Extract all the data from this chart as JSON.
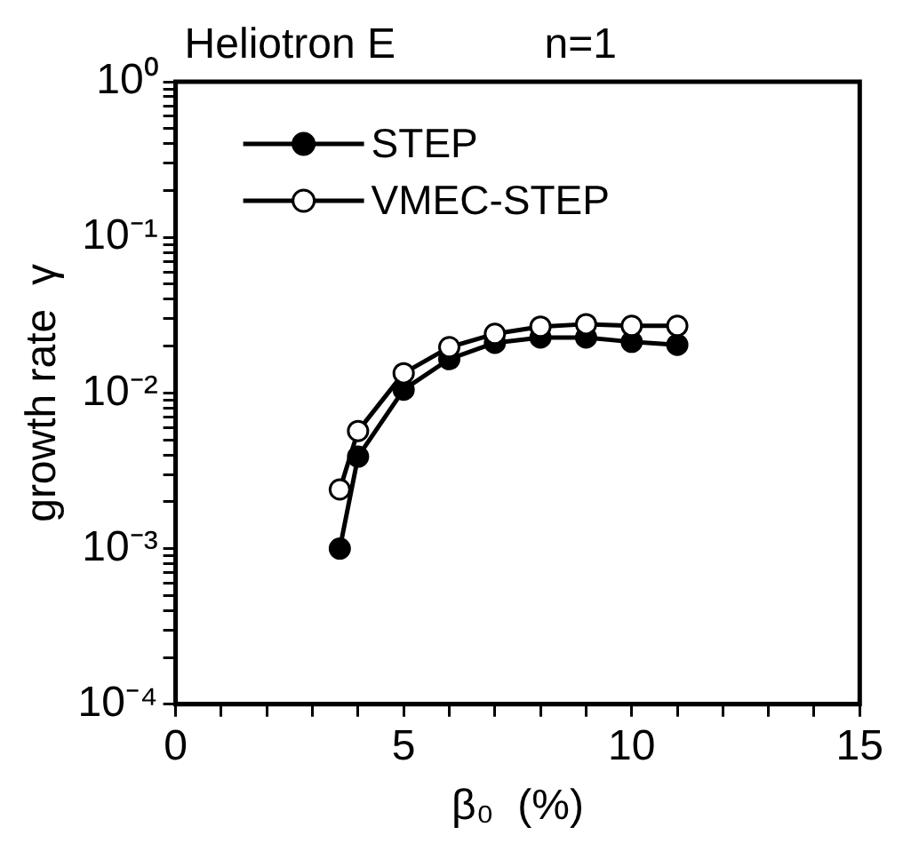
{
  "chart_data": {
    "type": "line",
    "title": "Heliotron E",
    "annotations": [
      "n=1"
    ],
    "xlabel": "β₀  (%)",
    "ylabel": "growth rate  γ",
    "log": "y",
    "marker": "circle",
    "line_style": "solid",
    "grid": false,
    "legend": "top left",
    "xlim": [
      0,
      15
    ],
    "ylim": [
      0.0001,
      1
    ],
    "xticks": [
      0,
      {
        "value": 1,
        "label": null
      },
      {
        "value": 2,
        "label": null
      },
      {
        "value": 3,
        "label": null
      },
      {
        "value": 4,
        "label": null
      },
      5,
      {
        "value": 6,
        "label": null
      },
      {
        "value": 7,
        "label": null
      },
      {
        "value": 8,
        "label": null
      },
      {
        "value": 9,
        "label": null
      },
      10,
      {
        "value": 11,
        "label": null
      },
      {
        "value": 12,
        "label": null
      },
      {
        "value": 13,
        "label": null
      },
      {
        "value": 14,
        "label": null
      },
      15
    ],
    "yticks": [
      {
        "value": 0.0001,
        "label": "10⁻⁴"
      },
      {
        "value": 0.0002,
        "label": null
      },
      {
        "value": 0.0003,
        "label": null
      },
      {
        "value": 0.0004,
        "label": null
      },
      {
        "value": 0.0005,
        "label": null
      },
      {
        "value": 0.0006,
        "label": null
      },
      {
        "value": 0.0007,
        "label": null
      },
      {
        "value": 0.0008,
        "label": null
      },
      {
        "value": 0.0009,
        "label": null
      },
      {
        "value": 0.001,
        "label": "10⁻³"
      },
      {
        "value": 0.002,
        "label": null
      },
      {
        "value": 0.003,
        "label": null
      },
      {
        "value": 0.004,
        "label": null
      },
      {
        "value": 0.005,
        "label": null
      },
      {
        "value": 0.006,
        "label": null
      },
      {
        "value": 0.007,
        "label": null
      },
      {
        "value": 0.008,
        "label": null
      },
      {
        "value": 0.009,
        "label": null
      },
      {
        "value": 0.01,
        "label": "10⁻²"
      },
      {
        "value": 0.02,
        "label": null
      },
      {
        "value": 0.03,
        "label": null
      },
      {
        "value": 0.04,
        "label": null
      },
      {
        "value": 0.05,
        "label": null
      },
      {
        "value": 0.06,
        "label": null
      },
      {
        "value": 0.07,
        "label": null
      },
      {
        "value": 0.08,
        "label": null
      },
      {
        "value": 0.09,
        "label": null
      },
      {
        "value": 0.1,
        "label": "10⁻¹"
      },
      {
        "value": 0.2,
        "label": null
      },
      {
        "value": 0.3,
        "label": null
      },
      {
        "value": 0.4,
        "label": null
      },
      {
        "value": 0.5,
        "label": null
      },
      {
        "value": 0.6,
        "label": null
      },
      {
        "value": 0.7,
        "label": null
      },
      {
        "value": 0.8,
        "label": null
      },
      {
        "value": 0.9,
        "label": null
      },
      {
        "value": 1,
        "label": "10⁰"
      }
    ],
    "x": [
      3.6,
      4,
      5,
      6,
      7,
      8,
      9,
      10,
      11
    ],
    "series": [
      {
        "name": "STEP",
        "color": "#000000",
        "values": [
          0.001,
          0.0039,
          0.0105,
          0.0165,
          0.021,
          0.0227,
          0.0227,
          0.0213,
          0.0204
        ]
      },
      {
        "name": "VMEC-STEP",
        "color": "#000000",
        "values": [
          0.0024,
          0.0057,
          0.0134,
          0.0197,
          0.024,
          0.0267,
          0.0277,
          0.027,
          0.027
        ]
      }
    ]
  }
}
